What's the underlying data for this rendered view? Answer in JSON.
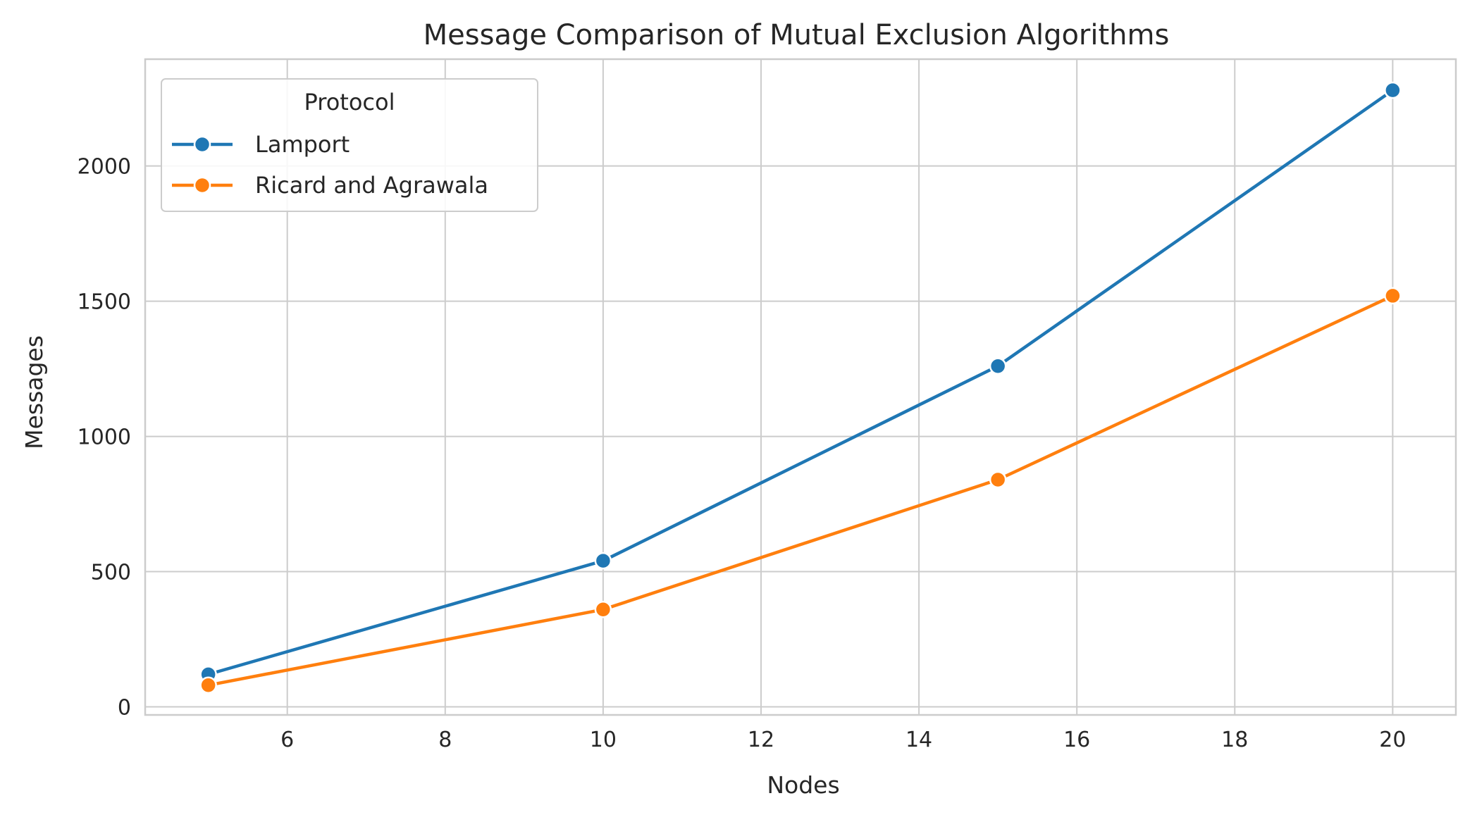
{
  "chart_data": {
    "type": "line",
    "title": "Message Comparison of Mutual Exclusion Algorithms",
    "xlabel": "Nodes",
    "ylabel": "Messages",
    "xlim": [
      4.2,
      20.8
    ],
    "ylim": [
      -30,
      2395
    ],
    "xticks": [
      6,
      8,
      10,
      12,
      14,
      16,
      18,
      20
    ],
    "yticks": [
      0,
      500,
      1000,
      1500,
      2000
    ],
    "grid": true,
    "legend": {
      "title": "Protocol",
      "placement": "top-left"
    },
    "series": [
      {
        "name": "Lamport",
        "color": "#1f77b4",
        "x": [
          5,
          10,
          15,
          20
        ],
        "y": [
          120,
          540,
          1260,
          2280
        ]
      },
      {
        "name": "Ricard and Agrawala",
        "color": "#ff7f0e",
        "x": [
          5,
          10,
          15,
          20
        ],
        "y": [
          80,
          360,
          840,
          1520
        ]
      }
    ]
  }
}
